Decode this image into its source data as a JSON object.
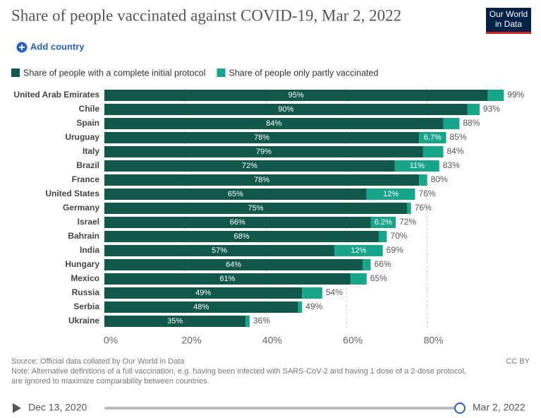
{
  "header": {
    "title": "Share of people vaccinated against COVID-19, Mar 2, 2022",
    "logo": [
      "Our World",
      "in Data"
    ],
    "add_button": "Add country"
  },
  "chart_data": {
    "type": "stacked-bar-horizontal",
    "categories": [
      "United Arab Emirates",
      "Chile",
      "Spain",
      "Uruguay",
      "Italy",
      "Brazil",
      "France",
      "United States",
      "Germany",
      "Israel",
      "Bahrain",
      "India",
      "Hungary",
      "Mexico",
      "Russia",
      "Serbia",
      "Ukraine"
    ],
    "series": [
      {
        "name": "Share of people with a complete initial protocol",
        "color": "#11584b",
        "values": [
          95,
          90,
          84,
          78,
          79,
          72,
          78,
          65,
          75,
          66,
          68,
          57,
          64,
          61,
          49,
          48,
          35
        ],
        "value_labels": [
          "95%",
          "90%",
          "84%",
          "78%",
          "79%",
          "72%",
          "78%",
          "65%",
          "75%",
          "66%",
          "68%",
          "57%",
          "64%",
          "61%",
          "49%",
          "48%",
          "35%"
        ]
      },
      {
        "name": "Share of people only partly vaccinated",
        "color": "#18a68a",
        "values": [
          4,
          3,
          4,
          6.7,
          5,
          11,
          2,
          12,
          1,
          6.2,
          2,
          12,
          2,
          4,
          5,
          1,
          1
        ],
        "value_labels": [
          null,
          null,
          null,
          "6.7%",
          null,
          "11%",
          null,
          "12%",
          null,
          "6.2%",
          null,
          "12%",
          null,
          null,
          null,
          null,
          null
        ]
      }
    ],
    "totals": {
      "values": [
        99,
        93,
        88,
        85,
        84,
        83,
        80,
        76,
        76,
        72,
        70,
        69,
        66,
        65,
        54,
        49,
        36
      ],
      "value_labels": [
        "99%",
        "93%",
        "88%",
        "85%",
        "84%",
        "83%",
        "80%",
        "76%",
        "76%",
        "72%",
        "70%",
        "69%",
        "66%",
        "65%",
        "54%",
        "49%",
        "36%"
      ]
    },
    "xlim": [
      0,
      100
    ],
    "xticks": [
      {
        "value": 0,
        "label": "0%"
      },
      {
        "value": 20,
        "label": "20%"
      },
      {
        "value": 40,
        "label": "40%"
      },
      {
        "value": 60,
        "label": "60%"
      },
      {
        "value": 80,
        "label": "80%"
      }
    ],
    "grid": true
  },
  "footer": {
    "source": "Source: Official data collated by Our World in Data",
    "license": "CC BY",
    "note": [
      "Note: Alternative definitions of a full vaccination, e.g. having been infected with SARS-CoV-2 and having 1 dose of a 2-dose protocol,",
      "are ignored to maximize comparability between countries."
    ]
  },
  "timeline": {
    "start": "Dec 13, 2020",
    "end": "Mar 2, 2022"
  }
}
